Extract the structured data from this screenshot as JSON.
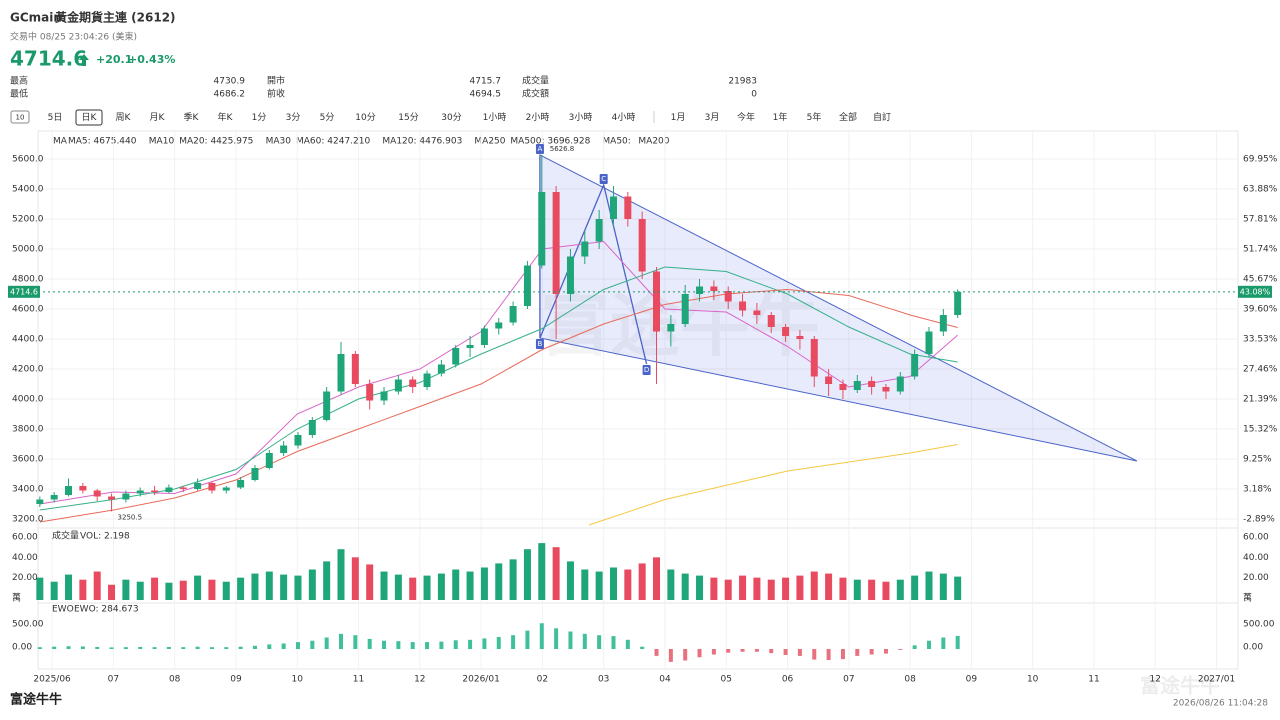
{
  "header": {
    "symbol": "GCmain",
    "name": "黃金期貨主連 (2612)",
    "status": "交易中 08/25 23:04:26 (美東)",
    "price": 4714.6,
    "change": "+20.1",
    "change_pct": "+0.43%"
  },
  "stats": [
    {
      "label": "最高",
      "value": 4730.9,
      "color": "#1a9a6a"
    },
    {
      "label": "最低",
      "value": 4686.2,
      "color": "#e0465a"
    },
    {
      "label": "開市",
      "value": 4715.7,
      "color": "#1a9a6a"
    },
    {
      "label": "前收",
      "value": 4694.5,
      "color": "#333333"
    },
    {
      "label": "成交量",
      "value": 21983,
      "color": "#333333"
    },
    {
      "label": "成交額",
      "value": 0,
      "color": "#333333"
    }
  ],
  "toolbar": {
    "icon": "10",
    "items": [
      "5日",
      "日K",
      "周K",
      "月K",
      "季K",
      "年K",
      "1分",
      "3分",
      "5分",
      "10分",
      "15分",
      "30分",
      "1小時",
      "2小時",
      "3小時",
      "4小時",
      "1月",
      "3月",
      "今年",
      "1年",
      "5年",
      "全部",
      "自訂"
    ],
    "selected": 1
  },
  "chart_data": {
    "type": "candlestick",
    "ma_title": "MA",
    "series": [
      {
        "name": "MA5: 4675.440",
        "color": "#f0983a"
      },
      {
        "name": "MA10",
        "color": "#9fd3f0"
      },
      {
        "name": "MA20: 4425.975",
        "color": "#d965c8",
        "x": [
          -0.2,
          1,
          2,
          3,
          4,
          5,
          6,
          7,
          8,
          9,
          10,
          11,
          12,
          13,
          14,
          14.776
        ],
        "values": [
          3300,
          3380,
          3370,
          3500,
          3900,
          4080,
          4200,
          4450,
          5000,
          5050,
          4600,
          4580,
          4350,
          4080,
          4150,
          4426
        ]
      },
      {
        "name": "MA30",
        "color": "#b8c8f0"
      },
      {
        "name": "MA60: 4247.210",
        "color": "#35b08a",
        "x": [
          -0.2,
          1,
          2,
          3,
          4,
          5,
          6,
          7,
          8,
          9,
          10,
          11,
          12,
          13,
          14,
          14.776
        ],
        "values": [
          3260,
          3330,
          3400,
          3530,
          3800,
          4000,
          4110,
          4300,
          4470,
          4730,
          4880,
          4850,
          4700,
          4480,
          4300,
          4247
        ]
      },
      {
        "name": "MA120: 4476.903",
        "color": "#e86a5a",
        "x": [
          -0.2,
          1,
          2,
          3,
          4,
          5,
          6,
          7,
          8,
          9,
          10,
          11,
          12,
          13,
          14,
          14.776
        ],
        "values": [
          3180,
          3260,
          3340,
          3460,
          3650,
          3800,
          3950,
          4100,
          4330,
          4500,
          4630,
          4700,
          4730,
          4690,
          4560,
          4477
        ]
      },
      {
        "name": "MA250",
        "color": "#a8e0f0"
      },
      {
        "name": "MA500: 3696.928",
        "color": "#f5c842",
        "x": [
          8.76,
          10,
          12,
          14,
          14.776
        ],
        "values": [
          3160,
          3330,
          3520,
          3640,
          3697
        ]
      },
      {
        "name": "MA50:",
        "color": "#c8b8e8"
      },
      {
        "name": "MA200",
        "color": "#c0c0c0"
      }
    ],
    "x": [
      -0.2,
      0.034,
      0.268,
      0.502,
      0.736,
      0.97,
      1.204,
      1.438,
      1.672,
      1.906,
      2.14,
      2.374,
      2.608,
      2.842,
      3.076,
      3.31,
      3.544,
      3.778,
      4.012,
      4.246,
      4.48,
      4.714,
      4.948,
      5.182,
      5.416,
      5.65,
      5.884,
      6.118,
      6.352,
      6.586,
      6.82,
      7.054,
      7.288,
      7.522,
      7.756,
      7.99,
      8.224,
      8.458,
      8.692,
      8.926,
      9.16,
      9.394,
      9.628,
      9.862,
      10.096,
      10.33,
      10.564,
      10.798,
      11.032,
      11.266,
      11.5,
      11.734,
      11.968,
      12.202,
      12.436,
      12.67,
      12.904,
      13.138,
      13.372,
      13.606,
      13.84,
      14.074,
      14.308,
      14.542,
      14.776
    ],
    "candles": [
      [
        3300,
        3350,
        3280,
        3330
      ],
      [
        3330,
        3380,
        3310,
        3360
      ],
      [
        3360,
        3470,
        3350,
        3420
      ],
      [
        3420,
        3440,
        3370,
        3390
      ],
      [
        3390,
        3400,
        3320,
        3350
      ],
      [
        3350,
        3370,
        3250.5,
        3330
      ],
      [
        3330,
        3390,
        3310,
        3370
      ],
      [
        3370,
        3410,
        3350,
        3390
      ],
      [
        3390,
        3420,
        3360,
        3380
      ],
      [
        3380,
        3430,
        3370,
        3410
      ],
      [
        3410,
        3420,
        3380,
        3400
      ],
      [
        3400,
        3470,
        3390,
        3440
      ],
      [
        3440,
        3450,
        3370,
        3390
      ],
      [
        3390,
        3420,
        3370,
        3410
      ],
      [
        3410,
        3480,
        3400,
        3460
      ],
      [
        3460,
        3560,
        3450,
        3540
      ],
      [
        3540,
        3660,
        3530,
        3640
      ],
      [
        3640,
        3720,
        3620,
        3690
      ],
      [
        3690,
        3780,
        3670,
        3760
      ],
      [
        3760,
        3880,
        3740,
        3860
      ],
      [
        3860,
        4080,
        3850,
        4050
      ],
      [
        4050,
        4380,
        4030,
        4300
      ],
      [
        4300,
        4320,
        4080,
        4100
      ],
      [
        4100,
        4130,
        3930,
        3990
      ],
      [
        3990,
        4080,
        3960,
        4050
      ],
      [
        4050,
        4160,
        4030,
        4130
      ],
      [
        4130,
        4150,
        4040,
        4080
      ],
      [
        4080,
        4190,
        4060,
        4170
      ],
      [
        4170,
        4260,
        4150,
        4230
      ],
      [
        4230,
        4360,
        4210,
        4340
      ],
      [
        4340,
        4420,
        4280,
        4360
      ],
      [
        4360,
        4490,
        4340,
        4470
      ],
      [
        4470,
        4540,
        4430,
        4510
      ],
      [
        4510,
        4650,
        4490,
        4620
      ],
      [
        4620,
        4920,
        4600,
        4890
      ],
      [
        4890,
        5626.8,
        4870,
        5380
      ],
      [
        5380,
        5420,
        4400,
        4700
      ],
      [
        4700,
        5000,
        4650,
        4950
      ],
      [
        4950,
        5120,
        4900,
        5050
      ],
      [
        5050,
        5260,
        5000,
        5200
      ],
      [
        5200,
        5420,
        5150,
        5350
      ],
      [
        5350,
        5380,
        5150,
        5200
      ],
      [
        5200,
        5250,
        4800,
        4850
      ],
      [
        4850,
        4880,
        4100,
        4450
      ],
      [
        4450,
        4560,
        4350,
        4500
      ],
      [
        4500,
        4760,
        4480,
        4700
      ],
      [
        4700,
        4800,
        4650,
        4750
      ],
      [
        4750,
        4790,
        4660,
        4720
      ],
      [
        4720,
        4750,
        4600,
        4650
      ],
      [
        4650,
        4700,
        4550,
        4590
      ],
      [
        4590,
        4640,
        4500,
        4560
      ],
      [
        4560,
        4580,
        4440,
        4480
      ],
      [
        4480,
        4500,
        4380,
        4420
      ],
      [
        4420,
        4460,
        4330,
        4400
      ],
      [
        4400,
        4420,
        4080,
        4150
      ],
      [
        4150,
        4200,
        4020,
        4100
      ],
      [
        4100,
        4130,
        4000,
        4060
      ],
      [
        4060,
        4160,
        4040,
        4120
      ],
      [
        4120,
        4150,
        4030,
        4080
      ],
      [
        4080,
        4100,
        4000,
        4050
      ],
      [
        4050,
        4180,
        4030,
        4150
      ],
      [
        4150,
        4330,
        4130,
        4300
      ],
      [
        4300,
        4480,
        4280,
        4450
      ],
      [
        4450,
        4600,
        4420,
        4560
      ],
      [
        4560,
        4730.9,
        4540,
        4714.6
      ]
    ],
    "up_color": "#1fa57a",
    "down_color": "#e84a5f",
    "xlim": [
      -0.23,
      19.35
    ],
    "xticks": [
      {
        "value": 0,
        "label": "2025/06"
      },
      {
        "value": 1,
        "label": "07"
      },
      {
        "value": 2,
        "label": "08"
      },
      {
        "value": 3,
        "label": "09"
      },
      {
        "value": 4,
        "label": "10"
      },
      {
        "value": 5,
        "label": "11"
      },
      {
        "value": 6,
        "label": "12"
      },
      {
        "value": 7,
        "label": "2026/01"
      },
      {
        "value": 8,
        "label": "02"
      },
      {
        "value": 9,
        "label": "03"
      },
      {
        "value": 10,
        "label": "04"
      },
      {
        "value": 11,
        "label": "05"
      },
      {
        "value": 12,
        "label": "06"
      },
      {
        "value": 13,
        "label": "07"
      },
      {
        "value": 14,
        "label": "08"
      },
      {
        "value": 15,
        "label": "09"
      },
      {
        "value": 16,
        "label": "10"
      },
      {
        "value": 17,
        "label": "11"
      },
      {
        "value": 18,
        "label": "12"
      },
      {
        "value": 19,
        "label": "2027/01"
      }
    ],
    "ylim": [
      3146.7,
      5706.7
    ],
    "yticks": [
      {
        "value": 3200,
        "label": "3200.0"
      },
      {
        "value": 3400,
        "label": "3400.0"
      },
      {
        "value": 3600,
        "label": "3600.0"
      },
      {
        "value": 3800,
        "label": "3800.0"
      },
      {
        "value": 4000,
        "label": "4000.0"
      },
      {
        "value": 4200,
        "label": "4200.0"
      },
      {
        "value": 4400,
        "label": "4400.0"
      },
      {
        "value": 4600,
        "label": "4600.0"
      },
      {
        "value": 4800,
        "label": "4800.0"
      },
      {
        "value": 5000,
        "label": "5000.0"
      },
      {
        "value": 5200,
        "label": "5200.0"
      },
      {
        "value": 5400,
        "label": "5400.0"
      },
      {
        "value": 5600,
        "label": "5600.0"
      }
    ],
    "y2lim": [
      -4.51,
      73.19
    ],
    "y2ticks": [
      {
        "value": -2.89,
        "label": "-2.89%"
      },
      {
        "value": 3.18,
        "label": "3.18%"
      },
      {
        "value": 9.25,
        "label": "9.25%"
      },
      {
        "value": 15.32,
        "label": "15.32%"
      },
      {
        "value": 21.39,
        "label": "21.39%"
      },
      {
        "value": 27.46,
        "label": "27.46%"
      },
      {
        "value": 33.53,
        "label": "33.53%"
      },
      {
        "value": 39.6,
        "label": "39.60%"
      },
      {
        "value": 45.67,
        "label": "45.67%"
      },
      {
        "value": 51.74,
        "label": "51.74%"
      },
      {
        "value": 57.81,
        "label": "57.81%"
      },
      {
        "value": 63.88,
        "label": "63.88%"
      },
      {
        "value": 69.95,
        "label": "69.95%"
      }
    ],
    "grid": true,
    "last_price": 4714.6,
    "last_pct": {
      "value": 43.08,
      "label": "43.08%"
    },
    "pattern": {
      "color": "#4a63c8",
      "points": [
        {
          "label": "A",
          "x": 7.96,
          "y": 5626.8
        },
        {
          "label": "B",
          "x": 7.96,
          "y": 4407
        },
        {
          "label": "C",
          "x": 9.0,
          "y": 5427
        },
        {
          "label": "D",
          "x": 9.7,
          "y": 4233
        }
      ],
      "apex": {
        "x": 17.7,
        "y": 3587
      }
    },
    "volume": {
      "title": "成交量",
      "legend": "VOL: 2.198",
      "ylim": [
        -1,
        68.9
      ],
      "yticks": [
        {
          "value": 0,
          "label": "萬"
        },
        {
          "value": 20,
          "label": "20.00"
        },
        {
          "value": 40,
          "label": "40.00"
        },
        {
          "value": 60,
          "label": "60.00"
        }
      ],
      "values": [
        22,
        18,
        25,
        20,
        28,
        15,
        20,
        18,
        22,
        17,
        19,
        24,
        20,
        18,
        22,
        26,
        28,
        25,
        24,
        30,
        38,
        50,
        42,
        35,
        28,
        25,
        22,
        24,
        26,
        30,
        28,
        32,
        36,
        40,
        50,
        56,
        52,
        38,
        30,
        28,
        32,
        30,
        36,
        42,
        30,
        26,
        24,
        22,
        20,
        24,
        22,
        20,
        22,
        24,
        28,
        26,
        22,
        20,
        20,
        18,
        20,
        24,
        28,
        26,
        23
      ]
    },
    "ewo": {
      "title": "EWO",
      "legend": "EWO: 284.673",
      "ylim": [
        -413,
        935
      ],
      "yticks": [
        {
          "value": 0,
          "label": "0.00"
        },
        {
          "value": 500,
          "label": "500.00"
        }
      ],
      "pos_color": "#3fbf9a",
      "neg_color": "#e8707f",
      "values": [
        40,
        50,
        60,
        55,
        45,
        35,
        40,
        45,
        40,
        45,
        40,
        50,
        40,
        40,
        50,
        70,
        100,
        120,
        150,
        180,
        250,
        330,
        300,
        220,
        180,
        170,
        150,
        150,
        160,
        190,
        200,
        230,
        260,
        300,
        400,
        560,
        450,
        380,
        330,
        300,
        280,
        200,
        50,
        -150,
        -280,
        -250,
        -180,
        -120,
        -80,
        -60,
        -60,
        -90,
        -130,
        -150,
        -230,
        -240,
        -220,
        -150,
        -120,
        -100,
        -20,
        80,
        180,
        250,
        284.673
      ]
    }
  },
  "footer": {
    "brand": "富途牛牛",
    "timestamp": "2026/08/26 11:04:28"
  }
}
